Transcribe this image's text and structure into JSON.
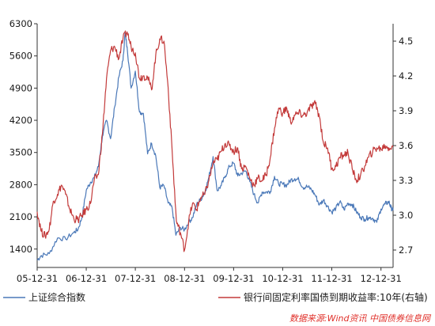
{
  "chart_data": {
    "type": "line",
    "title": "",
    "x_ticks": [
      "05-12-31",
      "06-12-31",
      "07-12-31",
      "08-12-31",
      "09-12-31",
      "10-12-31",
      "11-12-31",
      "12-12-31"
    ],
    "x_range": [
      "2005-12-31",
      "2013-03-31"
    ],
    "y_left": {
      "ticks": [
        1400,
        2100,
        2800,
        3500,
        4200,
        4900,
        5600,
        6300
      ],
      "range": [
        1000,
        6300
      ]
    },
    "y_right": {
      "ticks": [
        2.7,
        3.0,
        3.3,
        3.6,
        3.9,
        4.2,
        4.5
      ],
      "range": [
        2.55,
        4.65
      ]
    },
    "grid": false,
    "legend_position": "bottom",
    "series": [
      {
        "name": "上证综合指数",
        "axis": "left",
        "color": "#4a78b8",
        "points": [
          [
            "2005-12-31",
            1160
          ],
          [
            "2006-01-31",
            1260
          ],
          [
            "2006-03-31",
            1300
          ],
          [
            "2006-05-31",
            1640
          ],
          [
            "2006-07-31",
            1620
          ],
          [
            "2006-09-30",
            1760
          ],
          [
            "2006-10-31",
            1830
          ],
          [
            "2006-11-30",
            2100
          ],
          [
            "2006-12-31",
            2680
          ],
          [
            "2007-01-31",
            2850
          ],
          [
            "2007-02-28",
            2950
          ],
          [
            "2007-03-31",
            3190
          ],
          [
            "2007-04-30",
            3850
          ],
          [
            "2007-05-31",
            4200
          ],
          [
            "2007-06-30",
            3800
          ],
          [
            "2007-07-31",
            4500
          ],
          [
            "2007-08-31",
            5150
          ],
          [
            "2007-09-30",
            5500
          ],
          [
            "2007-10-16",
            6100
          ],
          [
            "2007-10-31",
            5800
          ],
          [
            "2007-11-30",
            4900
          ],
          [
            "2007-12-31",
            5270
          ],
          [
            "2008-01-31",
            4380
          ],
          [
            "2008-02-29",
            4350
          ],
          [
            "2008-03-31",
            3470
          ],
          [
            "2008-04-30",
            3700
          ],
          [
            "2008-05-31",
            3430
          ],
          [
            "2008-06-30",
            2740
          ],
          [
            "2008-07-31",
            2780
          ],
          [
            "2008-08-31",
            2400
          ],
          [
            "2008-09-30",
            2290
          ],
          [
            "2008-10-28",
            1700
          ],
          [
            "2008-11-30",
            1870
          ],
          [
            "2008-12-31",
            1820
          ],
          [
            "2009-01-31",
            1990
          ],
          [
            "2009-02-28",
            2080
          ],
          [
            "2009-03-31",
            2370
          ],
          [
            "2009-04-30",
            2480
          ],
          [
            "2009-05-31",
            2630
          ],
          [
            "2009-06-30",
            2960
          ],
          [
            "2009-07-31",
            3410
          ],
          [
            "2009-08-31",
            2670
          ],
          [
            "2009-09-30",
            2780
          ],
          [
            "2009-10-31",
            2990
          ],
          [
            "2009-11-30",
            3200
          ],
          [
            "2009-12-31",
            3270
          ],
          [
            "2010-01-31",
            2990
          ],
          [
            "2010-02-28",
            3050
          ],
          [
            "2010-03-31",
            3100
          ],
          [
            "2010-04-30",
            2870
          ],
          [
            "2010-05-31",
            2590
          ],
          [
            "2010-06-30",
            2400
          ],
          [
            "2010-07-31",
            2640
          ],
          [
            "2010-08-31",
            2640
          ],
          [
            "2010-09-30",
            2650
          ],
          [
            "2010-10-31",
            2980
          ],
          [
            "2010-11-30",
            2820
          ],
          [
            "2010-12-31",
            2810
          ],
          [
            "2011-01-31",
            2790
          ],
          [
            "2011-02-28",
            2900
          ],
          [
            "2011-03-31",
            2930
          ],
          [
            "2011-04-30",
            2910
          ],
          [
            "2011-05-31",
            2740
          ],
          [
            "2011-06-30",
            2760
          ],
          [
            "2011-07-31",
            2700
          ],
          [
            "2011-08-31",
            2570
          ],
          [
            "2011-09-30",
            2360
          ],
          [
            "2011-10-31",
            2470
          ],
          [
            "2011-11-30",
            2330
          ],
          [
            "2011-12-31",
            2200
          ],
          [
            "2012-01-31",
            2290
          ],
          [
            "2012-02-29",
            2430
          ],
          [
            "2012-03-31",
            2260
          ],
          [
            "2012-04-30",
            2400
          ],
          [
            "2012-05-31",
            2370
          ],
          [
            "2012-06-30",
            2220
          ],
          [
            "2012-07-31",
            2100
          ],
          [
            "2012-08-31",
            2050
          ],
          [
            "2012-09-30",
            2090
          ],
          [
            "2012-10-31",
            2070
          ],
          [
            "2012-11-30",
            1980
          ],
          [
            "2012-12-31",
            2270
          ],
          [
            "2013-01-31",
            2380
          ],
          [
            "2013-02-28",
            2430
          ],
          [
            "2013-03-15",
            2300
          ],
          [
            "2013-03-31",
            2240
          ]
        ]
      },
      {
        "name": "银行间固定利率国债到期收益率:10年(右轴)",
        "axis": "right",
        "color": "#c33a3a",
        "points": [
          [
            "2005-12-31",
            3.03
          ],
          [
            "2006-01-31",
            2.86
          ],
          [
            "2006-02-28",
            2.82
          ],
          [
            "2006-03-31",
            2.88
          ],
          [
            "2006-04-30",
            3.12
          ],
          [
            "2006-05-31",
            3.18
          ],
          [
            "2006-06-30",
            3.26
          ],
          [
            "2006-07-31",
            3.18
          ],
          [
            "2006-08-31",
            3.05
          ],
          [
            "2006-09-30",
            2.97
          ],
          [
            "2006-10-31",
            2.96
          ],
          [
            "2006-11-30",
            3.0
          ],
          [
            "2006-12-31",
            3.05
          ],
          [
            "2007-01-31",
            3.1
          ],
          [
            "2007-02-28",
            3.3
          ],
          [
            "2007-03-31",
            3.35
          ],
          [
            "2007-04-30",
            3.7
          ],
          [
            "2007-05-31",
            4.18
          ],
          [
            "2007-06-30",
            4.42
          ],
          [
            "2007-07-31",
            4.45
          ],
          [
            "2007-08-31",
            4.35
          ],
          [
            "2007-09-30",
            4.52
          ],
          [
            "2007-10-31",
            4.58
          ],
          [
            "2007-11-30",
            4.45
          ],
          [
            "2007-12-31",
            4.4
          ],
          [
            "2008-01-31",
            4.18
          ],
          [
            "2008-02-29",
            4.2
          ],
          [
            "2008-03-31",
            4.19
          ],
          [
            "2008-04-30",
            4.08
          ],
          [
            "2008-05-31",
            4.38
          ],
          [
            "2008-06-30",
            4.52
          ],
          [
            "2008-07-31",
            4.5
          ],
          [
            "2008-08-31",
            4.1
          ],
          [
            "2008-09-30",
            3.55
          ],
          [
            "2008-10-31",
            2.95
          ],
          [
            "2008-11-30",
            2.85
          ],
          [
            "2008-12-31",
            2.7
          ],
          [
            "2009-01-31",
            2.95
          ],
          [
            "2009-02-28",
            3.1
          ],
          [
            "2009-03-31",
            3.05
          ],
          [
            "2009-04-30",
            3.15
          ],
          [
            "2009-05-31",
            3.18
          ],
          [
            "2009-06-30",
            3.3
          ],
          [
            "2009-07-31",
            3.45
          ],
          [
            "2009-08-31",
            3.48
          ],
          [
            "2009-09-30",
            3.55
          ],
          [
            "2009-10-31",
            3.62
          ],
          [
            "2009-11-30",
            3.6
          ],
          [
            "2009-12-31",
            3.55
          ],
          [
            "2010-01-31",
            3.58
          ],
          [
            "2010-02-28",
            3.4
          ],
          [
            "2010-03-31",
            3.42
          ],
          [
            "2010-04-30",
            3.32
          ],
          [
            "2010-05-31",
            3.26
          ],
          [
            "2010-06-30",
            3.32
          ],
          [
            "2010-07-31",
            3.3
          ],
          [
            "2010-08-31",
            3.35
          ],
          [
            "2010-09-30",
            3.5
          ],
          [
            "2010-10-31",
            3.75
          ],
          [
            "2010-11-30",
            3.92
          ],
          [
            "2010-12-31",
            3.88
          ],
          [
            "2011-01-31",
            3.92
          ],
          [
            "2011-02-28",
            3.8
          ],
          [
            "2011-03-31",
            3.86
          ],
          [
            "2011-04-30",
            3.88
          ],
          [
            "2011-05-31",
            3.86
          ],
          [
            "2011-06-30",
            3.88
          ],
          [
            "2011-07-31",
            3.94
          ],
          [
            "2011-08-31",
            3.96
          ],
          [
            "2011-09-30",
            3.85
          ],
          [
            "2011-10-31",
            3.62
          ],
          [
            "2011-11-30",
            3.58
          ],
          [
            "2011-12-31",
            3.4
          ],
          [
            "2012-01-31",
            3.42
          ],
          [
            "2012-02-29",
            3.5
          ],
          [
            "2012-03-31",
            3.52
          ],
          [
            "2012-04-30",
            3.54
          ],
          [
            "2012-05-31",
            3.4
          ],
          [
            "2012-06-30",
            3.3
          ],
          [
            "2012-07-31",
            3.34
          ],
          [
            "2012-08-31",
            3.42
          ],
          [
            "2012-09-30",
            3.5
          ],
          [
            "2012-10-31",
            3.55
          ],
          [
            "2012-11-30",
            3.58
          ],
          [
            "2012-12-31",
            3.57
          ],
          [
            "2013-01-31",
            3.6
          ],
          [
            "2013-02-28",
            3.58
          ],
          [
            "2013-03-31",
            3.59
          ]
        ]
      }
    ],
    "source_note": "数据来源:Wind资讯 中国债券信息网"
  }
}
